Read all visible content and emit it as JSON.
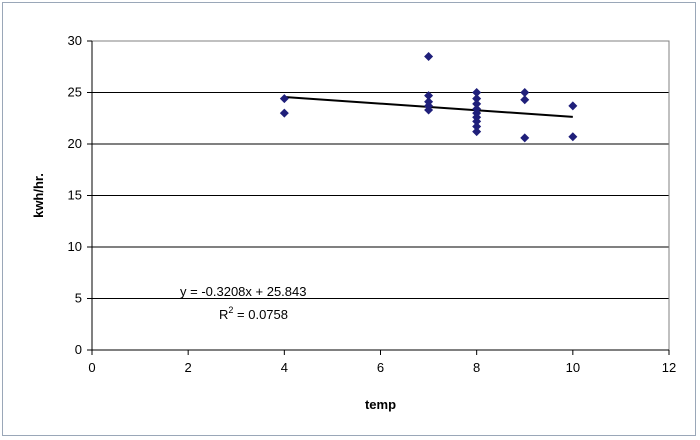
{
  "chart_data": {
    "type": "scatter",
    "title": "",
    "xlabel": "temp",
    "ylabel": "kwh/hr.",
    "xlim": [
      0,
      12
    ],
    "ylim": [
      0,
      30
    ],
    "x_ticks": [
      "0",
      "2",
      "4",
      "6",
      "8",
      "10",
      "12"
    ],
    "y_ticks": [
      "0",
      "5",
      "10",
      "15",
      "20",
      "25",
      "30"
    ],
    "grid": "horizontal",
    "legend": "none",
    "colors": {
      "points": "#1f1f7a",
      "trendline": "#000000",
      "gridlines": "#000000",
      "plot_border": "#808080"
    },
    "series": [
      {
        "points": [
          {
            "x": 4,
            "y": 24.4
          },
          {
            "x": 4,
            "y": 23.0
          },
          {
            "x": 7,
            "y": 28.5
          },
          {
            "x": 7,
            "y": 24.7
          },
          {
            "x": 7,
            "y": 24.1
          },
          {
            "x": 7,
            "y": 23.7
          },
          {
            "x": 7,
            "y": 23.3
          },
          {
            "x": 8,
            "y": 25.0
          },
          {
            "x": 8,
            "y": 24.4
          },
          {
            "x": 8,
            "y": 23.9
          },
          {
            "x": 8,
            "y": 23.4
          },
          {
            "x": 8,
            "y": 23.0
          },
          {
            "x": 8,
            "y": 22.6
          },
          {
            "x": 8,
            "y": 22.2
          },
          {
            "x": 8,
            "y": 21.7
          },
          {
            "x": 8,
            "y": 21.2
          },
          {
            "x": 9,
            "y": 25.0
          },
          {
            "x": 9,
            "y": 24.3
          },
          {
            "x": 9,
            "y": 20.6
          },
          {
            "x": 10,
            "y": 23.7
          },
          {
            "x": 10,
            "y": 20.7
          }
        ]
      }
    ],
    "trendline": {
      "slope": -0.3208,
      "intercept": 25.843,
      "x_range": [
        4,
        10
      ],
      "equation": "y = -0.3208x + 25.843",
      "r2_label": "R",
      "r2_exp": "2",
      "r2_value": " = 0.0758"
    }
  }
}
